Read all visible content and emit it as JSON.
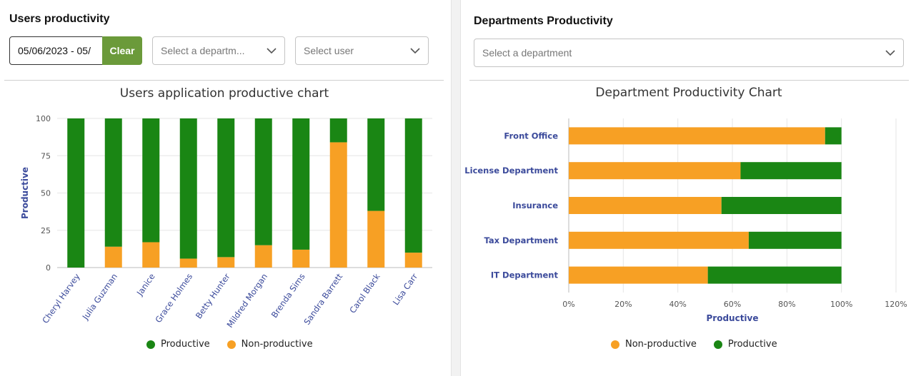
{
  "colors": {
    "productive": "#1a8614",
    "non_productive": "#f7a024",
    "accent_button": "#6b9a3a",
    "axis_label": "#3b4a9b"
  },
  "left": {
    "title": "Users productivity",
    "date_range": "05/06/2023 - 05/",
    "clear_label": "Clear",
    "department_select": "Select a departm...",
    "user_select": "Select user",
    "chart_title": "Users application productive chart",
    "legend": {
      "productive": "Productive",
      "non_productive": "Non-productive"
    }
  },
  "right": {
    "title": "Departments Productivity",
    "department_select": "Select a department",
    "chart_title": "Department Productivity Chart",
    "legend": {
      "non_productive": "Non-productive",
      "productive": "Productive"
    }
  },
  "chart_data": [
    {
      "type": "bar",
      "stacked": true,
      "title": "Users application productive chart",
      "ylabel": "Productive",
      "ylim": [
        0,
        100
      ],
      "yticks": [
        "0",
        "25",
        "50",
        "75",
        "100"
      ],
      "categories": [
        "Cheryl Harvey",
        "Julia Guzman",
        "Janice",
        "Grace Holmes",
        "Betty Hunter",
        "Mildred Morgan",
        "Brenda Sims",
        "Sandra Barrett",
        "Carol Black",
        "Lisa Carr"
      ],
      "series": [
        {
          "name": "Non-productive",
          "values": [
            0,
            14,
            17,
            6,
            7,
            15,
            12,
            84,
            38,
            10
          ]
        },
        {
          "name": "Productive",
          "values": [
            100,
            86,
            83,
            94,
            93,
            85,
            88,
            16,
            62,
            90
          ]
        }
      ],
      "grid": true,
      "legend_position": "bottom"
    },
    {
      "type": "bar",
      "orientation": "horizontal",
      "stacked": true,
      "title": "Department Productivity Chart",
      "xlabel": "Productive",
      "xlim": [
        0,
        120
      ],
      "xticks": [
        "0%",
        "20%",
        "40%",
        "60%",
        "80%",
        "100%",
        "120%"
      ],
      "categories": [
        "Front Office",
        "License Department",
        "Insurance",
        "Tax Department",
        "IT Department"
      ],
      "series": [
        {
          "name": "Non-productive",
          "values": [
            94,
            63,
            56,
            66,
            51
          ]
        },
        {
          "name": "Productive",
          "values": [
            6,
            37,
            44,
            34,
            49
          ]
        }
      ],
      "grid": true,
      "legend_position": "bottom"
    }
  ]
}
